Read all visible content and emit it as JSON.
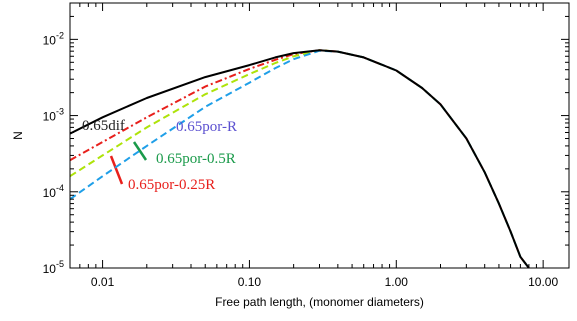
{
  "chart_data": {
    "type": "line",
    "xlabel": "Free path length, (monomer diameters)",
    "ylabel": "N",
    "x_scale": "log",
    "y_scale": "log",
    "xlim": [
      0.006,
      15
    ],
    "ylim": [
      1e-05,
      0.03
    ],
    "x_ticks": [
      {
        "value": 0.01,
        "label": "0.01"
      },
      {
        "value": 0.1,
        "label": "0.10"
      },
      {
        "value": 1,
        "label": "1.00"
      },
      {
        "value": 10,
        "label": "10.00"
      }
    ],
    "y_ticks": [
      {
        "value": 0.01,
        "base": "10",
        "exp": "-2"
      },
      {
        "value": 0.001,
        "base": "10",
        "exp": "-3"
      },
      {
        "value": 0.0001,
        "base": "10",
        "exp": "-4"
      },
      {
        "value": 1e-05,
        "base": "10",
        "exp": "-5"
      }
    ],
    "grid": false,
    "series": [
      {
        "name": "0.65dif",
        "color": "#000000",
        "dash": "solid",
        "x": [
          0.006,
          0.01,
          0.02,
          0.05,
          0.1,
          0.15,
          0.2,
          0.3,
          0.4,
          0.6,
          1,
          1.5,
          2,
          3,
          4,
          5,
          6,
          7,
          8
        ],
        "y": [
          0.00058,
          0.00095,
          0.0017,
          0.0032,
          0.0046,
          0.0058,
          0.0066,
          0.0072,
          0.0069,
          0.0058,
          0.0039,
          0.0023,
          0.0014,
          0.0005,
          0.00018,
          7e-05,
          3e-05,
          1.4e-05,
          1e-05
        ]
      },
      {
        "name": "0.65por-R",
        "color": "#1f9fe8",
        "dash": "dashed",
        "x": [
          0.006,
          0.01,
          0.02,
          0.05,
          0.1,
          0.15,
          0.2,
          0.3,
          0.4,
          0.6,
          1,
          1.5,
          2,
          3,
          4,
          5,
          6,
          7,
          8
        ],
        "y": [
          8e-05,
          0.00016,
          0.0004,
          0.0013,
          0.0027,
          0.0042,
          0.0055,
          0.0071,
          0.0069,
          0.0058,
          0.0039,
          0.0023,
          0.0014,
          0.0005,
          0.00018,
          7e-05,
          3e-05,
          1.4e-05,
          1e-05
        ]
      },
      {
        "name": "0.65por-0.5R",
        "color": "#aee30a",
        "dash": "dashed",
        "x": [
          0.006,
          0.01,
          0.02,
          0.05,
          0.1,
          0.15,
          0.2,
          0.3,
          0.4,
          0.6,
          1,
          1.5,
          2,
          3,
          4,
          5,
          6,
          7,
          8
        ],
        "y": [
          0.00016,
          0.0003,
          0.0007,
          0.0019,
          0.0035,
          0.0049,
          0.006,
          0.0072,
          0.0069,
          0.0058,
          0.0039,
          0.0023,
          0.0014,
          0.0005,
          0.00018,
          7e-05,
          3e-05,
          1.4e-05,
          1e-05
        ]
      },
      {
        "name": "0.65por-0.25R",
        "color": "#e8201c",
        "dash": "dashdot",
        "x": [
          0.006,
          0.01,
          0.02,
          0.05,
          0.1,
          0.15,
          0.2,
          0.3,
          0.4,
          0.6,
          1,
          1.5,
          2,
          3,
          4,
          5,
          6,
          7,
          8
        ],
        "y": [
          0.00026,
          0.00045,
          0.00095,
          0.0024,
          0.0041,
          0.0054,
          0.0064,
          0.0072,
          0.0069,
          0.0058,
          0.0039,
          0.0023,
          0.0014,
          0.0005,
          0.00018,
          7e-05,
          3e-05,
          1.4e-05,
          1e-05
        ]
      }
    ],
    "annotations": [
      {
        "text": "0.65dif",
        "color": "#222222",
        "series": "0.65dif",
        "pointer": false
      },
      {
        "text": "0.65por-R",
        "color": "#5a4fd0",
        "series": "0.65por-R",
        "pointer": false
      },
      {
        "text": "0.65por-0.5R",
        "color": "#1a9a4a",
        "series": "0.65por-0.5R",
        "pointer": true
      },
      {
        "text": "0.65por-0.25R",
        "color": "#e8201c",
        "series": "0.65por-0.25R",
        "pointer": true
      }
    ]
  }
}
